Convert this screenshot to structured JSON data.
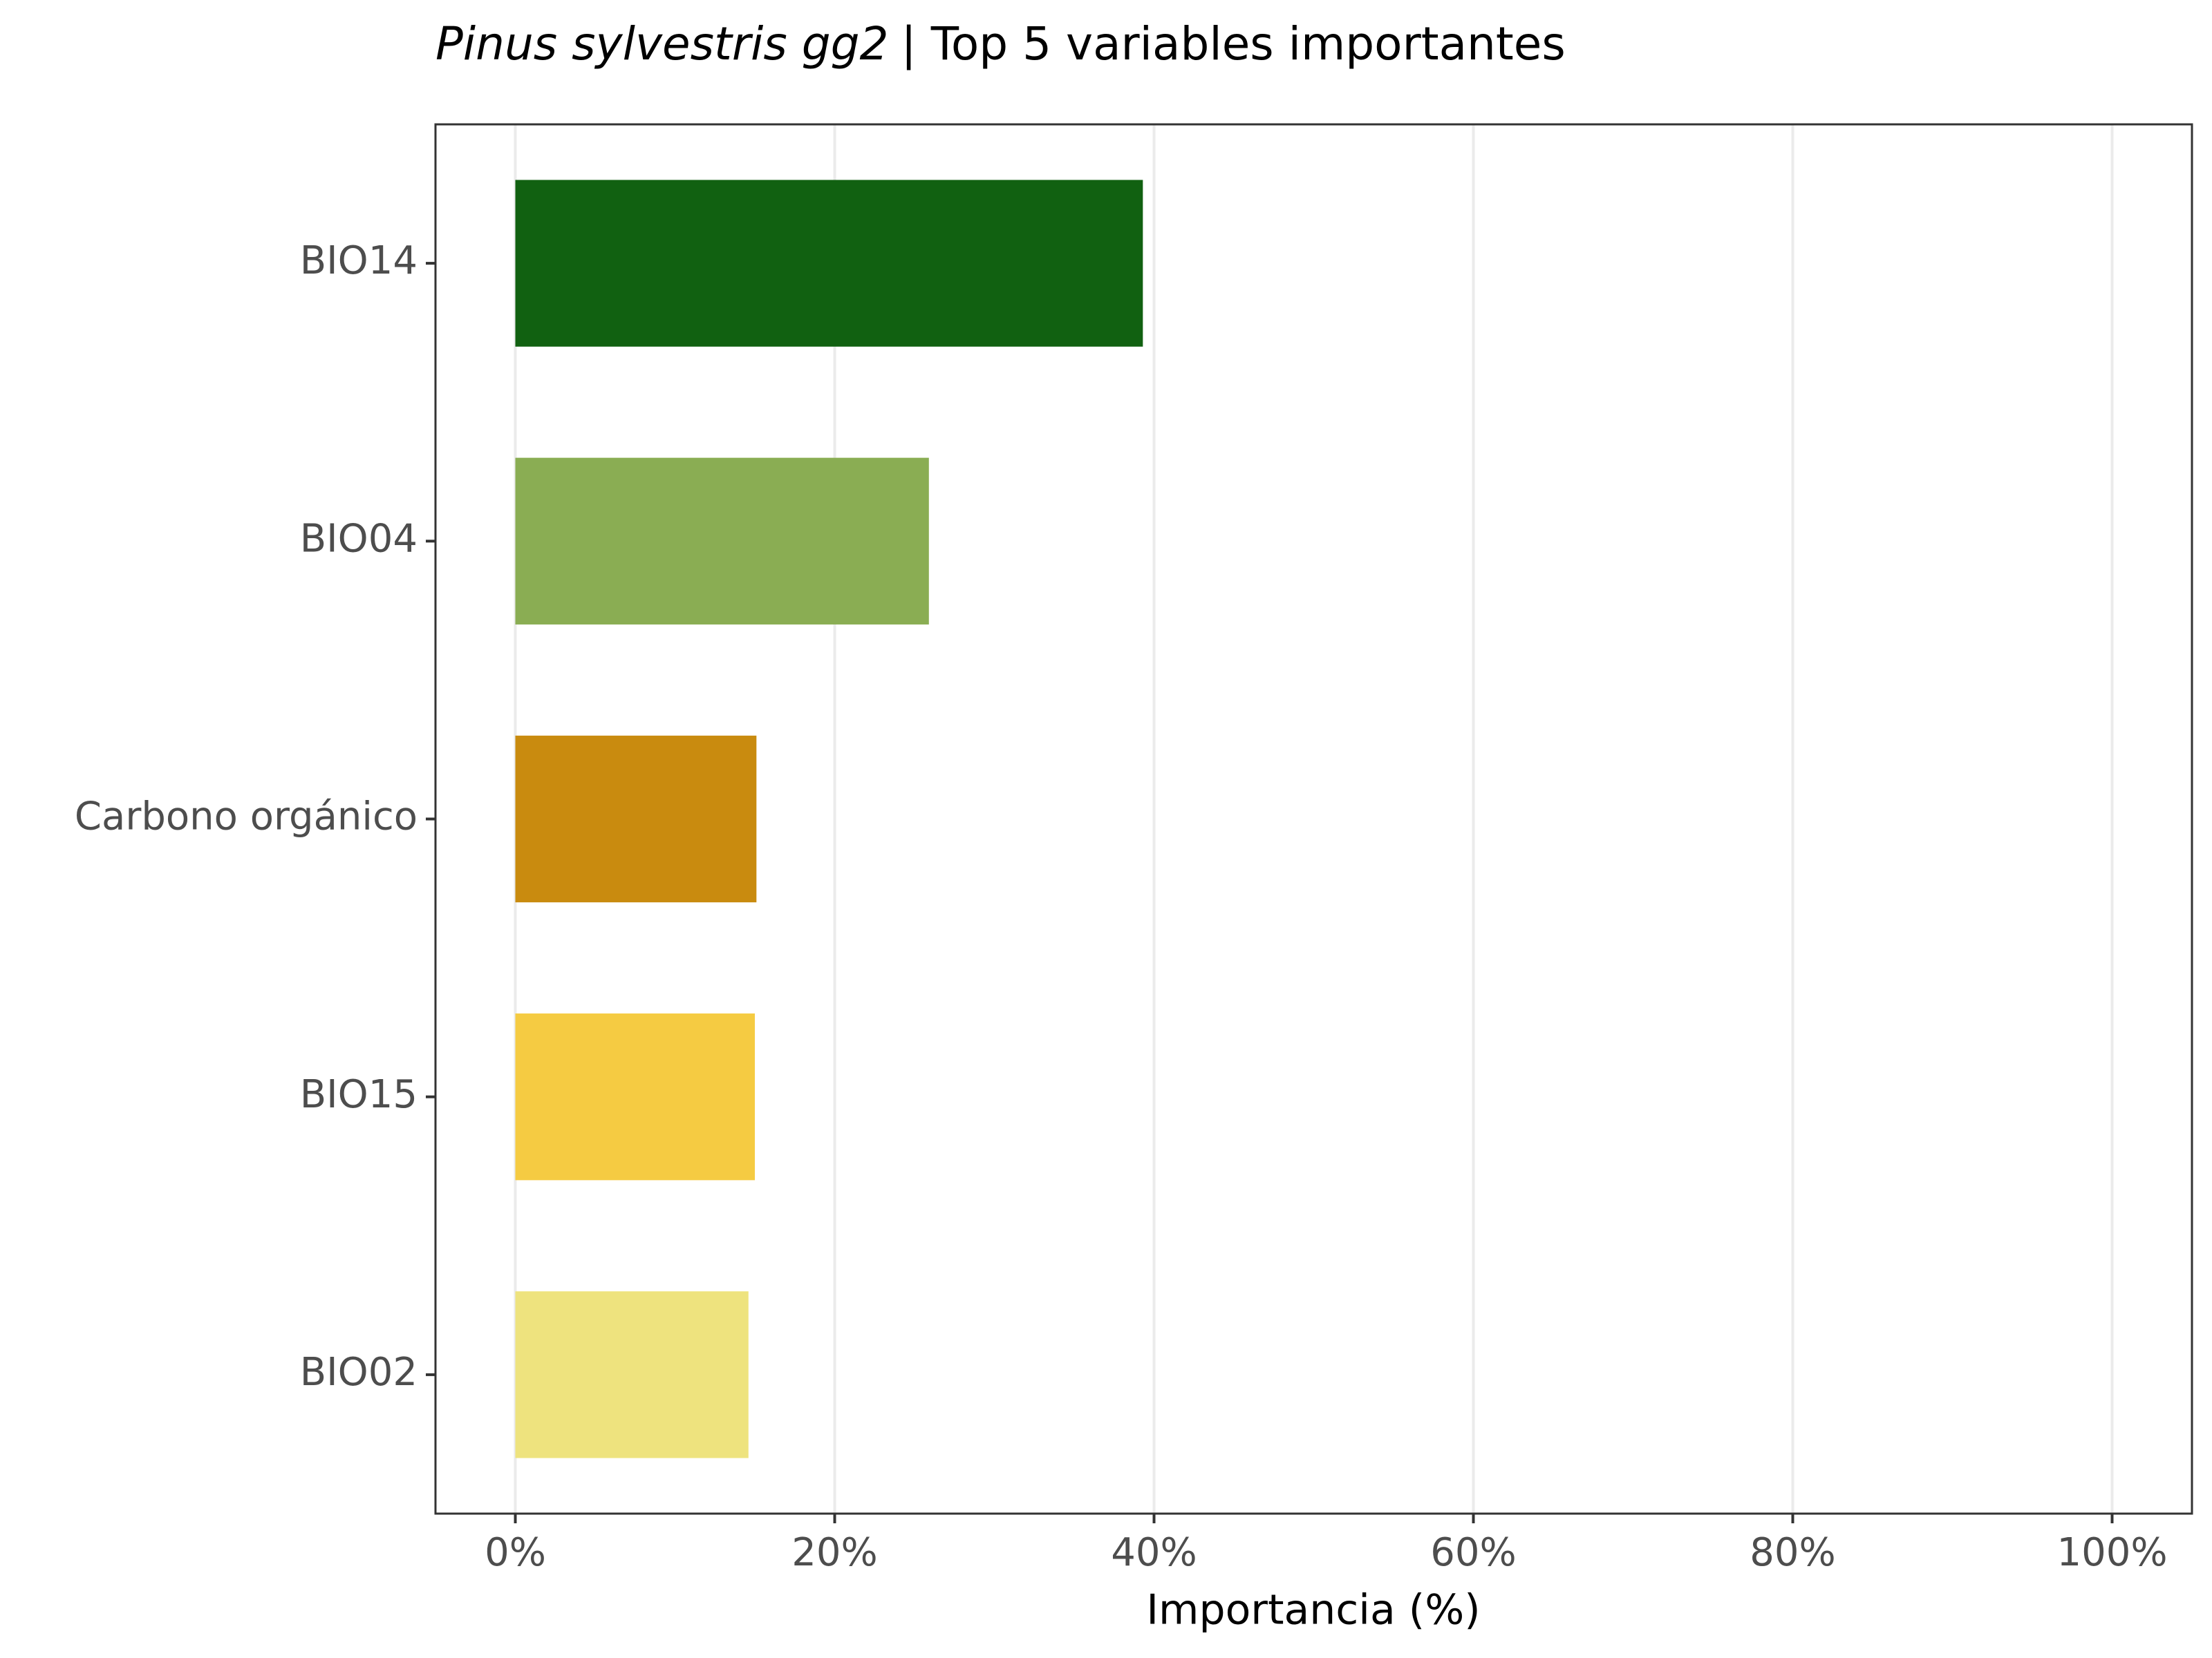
{
  "chart_data": {
    "type": "bar",
    "orientation": "horizontal",
    "title": {
      "species": "Pinus sylvestris gg2",
      "text": "| Top 5 variables importantes"
    },
    "x_label": "Importancia (%)",
    "categories": [
      "BIO14",
      "BIO04",
      "Carbono orgánico",
      "BIO15",
      "BIO02"
    ],
    "values": [
      39.3,
      25.9,
      15.1,
      15.0,
      14.6
    ],
    "colors": [
      "#116111",
      "#8aad53",
      "#c98b0f",
      "#f5cb42",
      "#eee37e"
    ],
    "xlim": [
      -5,
      105
    ],
    "xticks": [
      {
        "value": 0,
        "label": "0%"
      },
      {
        "value": 20,
        "label": "20%"
      },
      {
        "value": 40,
        "label": "40%"
      },
      {
        "value": 60,
        "label": "60%"
      },
      {
        "value": 80,
        "label": "80%"
      },
      {
        "value": 100,
        "label": "100%"
      }
    ],
    "grid": true
  }
}
